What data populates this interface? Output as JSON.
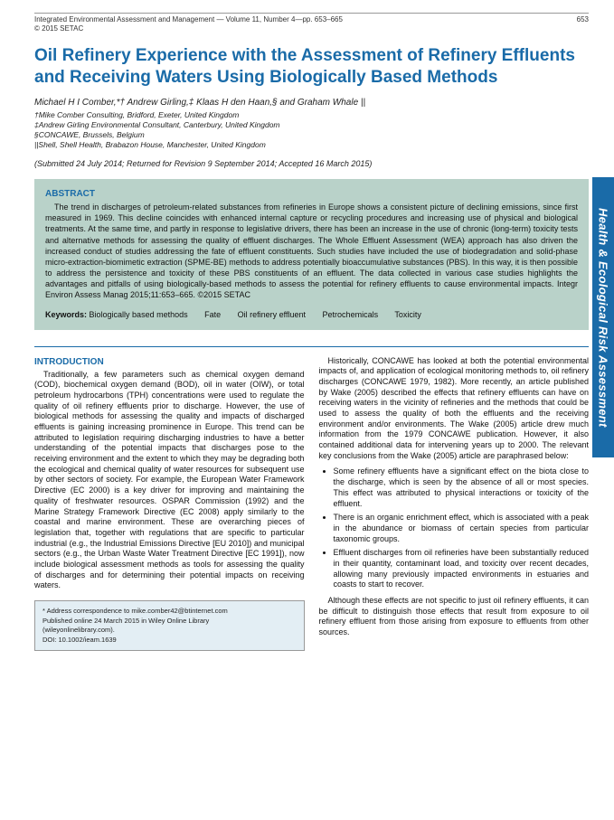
{
  "header": {
    "journal_line": "Integrated Environmental Assessment and Management — Volume 11, Number 4—pp. 653–665",
    "copyright": "© 2015 SETAC",
    "page_number": "653"
  },
  "title": "Oil Refinery Experience with the Assessment of Refinery Effluents and Receiving Waters Using Biologically Based Methods",
  "authors": "Michael H I Comber,*† Andrew Girling,‡ Klaas H den Haan,§ and Graham Whale ||",
  "affiliations": [
    "†Mike Comber Consulting, Bridford, Exeter, United Kingdom",
    "‡Andrew Girling Environmental Consultant, Canterbury, United Kingdom",
    "§CONCAWE, Brussels, Belgium",
    "||Shell, Shell Health, Brabazon House, Manchester, United Kingdom"
  ],
  "dates": "(Submitted 24 July 2014; Returned for Revision 9 September 2014; Accepted 16 March 2015)",
  "abstract": {
    "heading": "ABSTRACT",
    "text": "The trend in discharges of petroleum-related substances from refineries in Europe shows a consistent picture of declining emissions, since first measured in 1969. This decline coincides with enhanced internal capture or recycling procedures and increasing use of physical and biological treatments. At the same time, and partly in response to legislative drivers, there has been an increase in the use of chronic (long-term) toxicity tests and alternative methods for assessing the quality of effluent discharges. The Whole Effluent Assessment (WEA) approach has also driven the increased conduct of studies addressing the fate of effluent constituents. Such studies have included the use of biodegradation and solid-phase micro-extraction-biomimetic extraction (SPME-BE) methods to address potentially bioaccumulative substances (PBS). In this way, it is then possible to address the persistence and toxicity of these PBS constituents of an effluent. The data collected in various case studies highlights the advantages and pitfalls of using biologically-based methods to assess the potential for refinery effluents to cause environmental impacts. Integr Environ Assess Manag 2015;11:653–665. ©2015 SETAC"
  },
  "keywords": {
    "label": "Keywords:",
    "items": [
      "Biologically based methods",
      "Fate",
      "Oil refinery effluent",
      "Petrochemicals",
      "Toxicity"
    ]
  },
  "sideTab": "Health & Ecological Risk Assessment",
  "intro": {
    "heading": "INTRODUCTION",
    "col1_p1": "Traditionally, a few parameters such as chemical oxygen demand (COD), biochemical oxygen demand (BOD), oil in water (OIW), or total petroleum hydrocarbons (TPH) concentrations were used to regulate the quality of oil refinery effluents prior to discharge. However, the use of biological methods for assessing the quality and impacts of discharged effluents is gaining increasing prominence in Europe. This trend can be attributed to legislation requiring discharging industries to have a better understanding of the potential impacts that discharges pose to the receiving environment and the extent to which they may be degrading both the ecological and chemical quality of water resources for subsequent use by other sectors of society. For example, the European Water Framework Directive (EC 2000) is a key driver for improving and maintaining the quality of freshwater resources. OSPAR Commission (1992) and the Marine Strategy Framework Directive (EC 2008) apply similarly to the coastal and marine environment. These are overarching pieces of legislation that, together with regulations that are specific to particular industrial (e.g., the Industrial Emissions Directive [EU 2010]) and municipal sectors (e.g., the Urban Waste Water Treatment Directive [EC 1991]), now include biological assessment methods as tools for assessing the quality of discharges and for determining their potential impacts on receiving waters.",
    "col2_p1": "Historically, CONCAWE has looked at both the potential environmental impacts of, and application of ecological monitoring methods to, oil refinery discharges (CONCAWE 1979, 1982). More recently, an article published by Wake (2005) described the effects that refinery effluents can have on receiving waters in the vicinity of refineries and the methods that could be used to assess the quality of both the effluents and the receiving environment and/or environments. The Wake (2005) article drew much information from the 1979 CONCAWE publication. However, it also contained additional data for intervening years up to 2000. The relevant key conclusions from the Wake (2005) article are paraphrased below:",
    "bullets": [
      "Some refinery effluents have a significant effect on the biota close to the discharge, which is seen by the absence of all or most species. This effect was attributed to physical interactions or toxicity of the effluent.",
      "There is an organic enrichment effect, which is associated with a peak in the abundance or biomass of certain species from particular taxonomic groups.",
      "Effluent discharges from oil refineries have been substantially reduced in their quantity, contaminant load, and toxicity over recent decades, allowing many previously impacted environments in estuaries and coasts to start to recover."
    ],
    "col2_p2": "Although these effects are not specific to just oil refinery effluents, it can be difficult to distinguish those effects that result from exposure to oil refinery effluent from those arising from exposure to effluents from other sources."
  },
  "footer": {
    "line1": "* Address correspondence to mike.comber42@btinternet.com",
    "line2": "Published online 24 March 2015 in Wiley Online Library",
    "line3": "(wileyonlinelibrary.com).",
    "line4": "DOI: 10.1002/ieam.1639"
  },
  "colors": {
    "accent": "#1a6ba8",
    "abstract_bg": "#b9d2c9",
    "footer_bg": "#e3eef4"
  }
}
